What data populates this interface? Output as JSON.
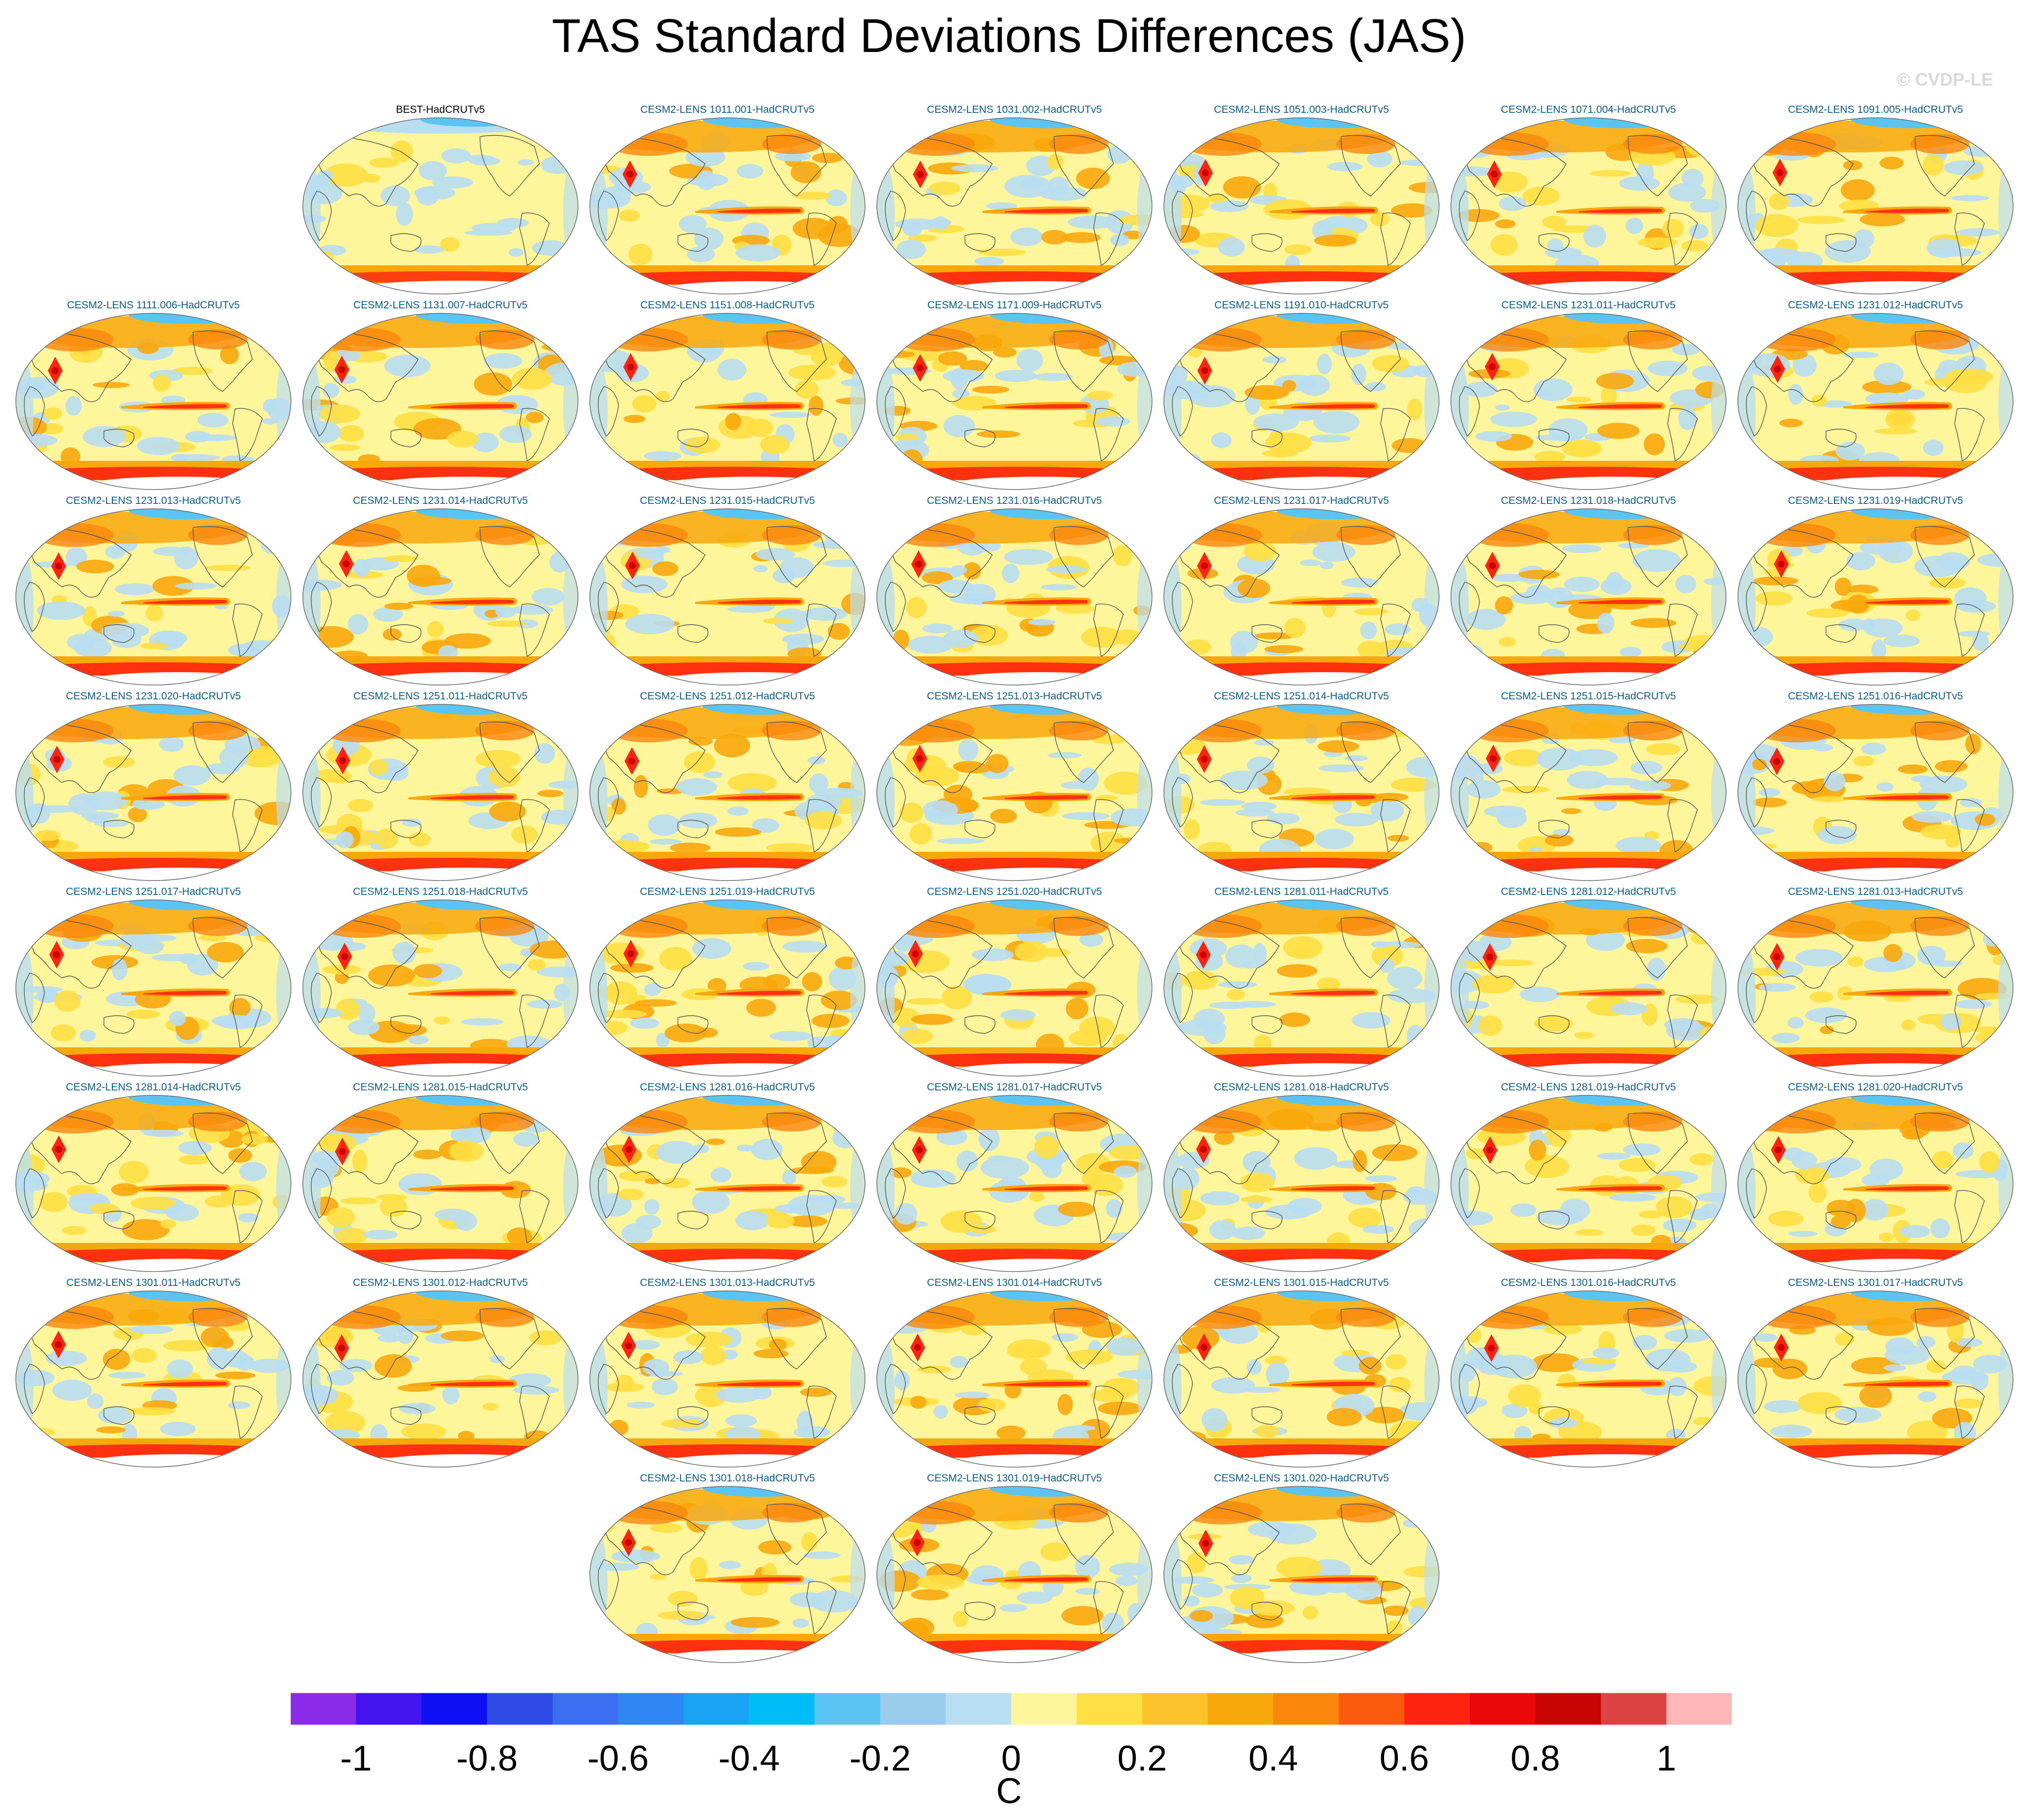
{
  "title": "TAS Standard Deviations Differences (JAS)",
  "watermark": "© CVDP-LE",
  "panels": [
    {
      "label": "BEST-HadCRUTv5",
      "type": "obs"
    },
    {
      "label": "CESM2-LENS 1011.001-HadCRUTv5",
      "type": "model"
    },
    {
      "label": "CESM2-LENS 1031.002-HadCRUTv5",
      "type": "model"
    },
    {
      "label": "CESM2-LENS 1051.003-HadCRUTv5",
      "type": "model"
    },
    {
      "label": "CESM2-LENS 1071.004-HadCRUTv5",
      "type": "model"
    },
    {
      "label": "CESM2-LENS 1091.005-HadCRUTv5",
      "type": "model"
    },
    {
      "label": "CESM2-LENS 1111.006-HadCRUTv5",
      "type": "model"
    },
    {
      "label": "CESM2-LENS 1131.007-HadCRUTv5",
      "type": "model"
    },
    {
      "label": "CESM2-LENS 1151.008-HadCRUTv5",
      "type": "model"
    },
    {
      "label": "CESM2-LENS 1171.009-HadCRUTv5",
      "type": "model"
    },
    {
      "label": "CESM2-LENS 1191.010-HadCRUTv5",
      "type": "model"
    },
    {
      "label": "CESM2-LENS 1231.011-HadCRUTv5",
      "type": "model"
    },
    {
      "label": "CESM2-LENS 1231.012-HadCRUTv5",
      "type": "model"
    },
    {
      "label": "CESM2-LENS 1231.013-HadCRUTv5",
      "type": "model"
    },
    {
      "label": "CESM2-LENS 1231.014-HadCRUTv5",
      "type": "model"
    },
    {
      "label": "CESM2-LENS 1231.015-HadCRUTv5",
      "type": "model"
    },
    {
      "label": "CESM2-LENS 1231.016-HadCRUTv5",
      "type": "model"
    },
    {
      "label": "CESM2-LENS 1231.017-HadCRUTv5",
      "type": "model"
    },
    {
      "label": "CESM2-LENS 1231.018-HadCRUTv5",
      "type": "model"
    },
    {
      "label": "CESM2-LENS 1231.019-HadCRUTv5",
      "type": "model"
    },
    {
      "label": "CESM2-LENS 1231.020-HadCRUTv5",
      "type": "model"
    },
    {
      "label": "CESM2-LENS 1251.011-HadCRUTv5",
      "type": "model"
    },
    {
      "label": "CESM2-LENS 1251.012-HadCRUTv5",
      "type": "model"
    },
    {
      "label": "CESM2-LENS 1251.013-HadCRUTv5",
      "type": "model"
    },
    {
      "label": "CESM2-LENS 1251.014-HadCRUTv5",
      "type": "model"
    },
    {
      "label": "CESM2-LENS 1251.015-HadCRUTv5",
      "type": "model"
    },
    {
      "label": "CESM2-LENS 1251.016-HadCRUTv5",
      "type": "model"
    },
    {
      "label": "CESM2-LENS 1251.017-HadCRUTv5",
      "type": "model"
    },
    {
      "label": "CESM2-LENS 1251.018-HadCRUTv5",
      "type": "model"
    },
    {
      "label": "CESM2-LENS 1251.019-HadCRUTv5",
      "type": "model"
    },
    {
      "label": "CESM2-LENS 1251.020-HadCRUTv5",
      "type": "model"
    },
    {
      "label": "CESM2-LENS 1281.011-HadCRUTv5",
      "type": "model"
    },
    {
      "label": "CESM2-LENS 1281.012-HadCRUTv5",
      "type": "model"
    },
    {
      "label": "CESM2-LENS 1281.013-HadCRUTv5",
      "type": "model"
    },
    {
      "label": "CESM2-LENS 1281.014-HadCRUTv5",
      "type": "model"
    },
    {
      "label": "CESM2-LENS 1281.015-HadCRUTv5",
      "type": "model"
    },
    {
      "label": "CESM2-LENS 1281.016-HadCRUTv5",
      "type": "model"
    },
    {
      "label": "CESM2-LENS 1281.017-HadCRUTv5",
      "type": "model"
    },
    {
      "label": "CESM2-LENS 1281.018-HadCRUTv5",
      "type": "model"
    },
    {
      "label": "CESM2-LENS 1281.019-HadCRUTv5",
      "type": "model"
    },
    {
      "label": "CESM2-LENS 1281.020-HadCRUTv5",
      "type": "model"
    },
    {
      "label": "CESM2-LENS 1301.011-HadCRUTv5",
      "type": "model"
    },
    {
      "label": "CESM2-LENS 1301.012-HadCRUTv5",
      "type": "model"
    },
    {
      "label": "CESM2-LENS 1301.013-HadCRUTv5",
      "type": "model"
    },
    {
      "label": "CESM2-LENS 1301.014-HadCRUTv5",
      "type": "model"
    },
    {
      "label": "CESM2-LENS 1301.015-HadCRUTv5",
      "type": "model"
    },
    {
      "label": "CESM2-LENS 1301.016-HadCRUTv5",
      "type": "model"
    },
    {
      "label": "CESM2-LENS 1301.017-HadCRUTv5",
      "type": "model"
    },
    {
      "label": "CESM2-LENS 1301.018-HadCRUTv5",
      "type": "model"
    },
    {
      "label": "CESM2-LENS 1301.019-HadCRUTv5",
      "type": "model"
    },
    {
      "label": "CESM2-LENS 1301.020-HadCRUTv5",
      "type": "model"
    }
  ],
  "colorbar": {
    "colors": [
      "#8b2bea",
      "#4314f0",
      "#0f0ff5",
      "#2f4de6",
      "#3b6ef0",
      "#2f86f5",
      "#1aa3f5",
      "#00bdf7",
      "#5bc4f2",
      "#99cbea",
      "#b9def2",
      "#fff59a",
      "#ffdf44",
      "#fbc22a",
      "#f9a80c",
      "#fb870c",
      "#fb5a0c",
      "#ff2410",
      "#ea0808",
      "#c80404",
      "#db4242",
      "#ffb6b6"
    ],
    "tick_labels": [
      "-1",
      "-0.8",
      "-0.6",
      "-0.4",
      "-0.2",
      "0",
      "0.2",
      "0.4",
      "0.6",
      "0.8",
      "1"
    ],
    "units": "C"
  },
  "map_colors": {
    "base": "#fff59a",
    "light_blue": "#b9def2",
    "mid_blue": "#5bc4f2",
    "yellow": "#ffdf44",
    "orange": "#f9a80c",
    "dark_orange": "#fb870c",
    "red": "#ff2410",
    "dark_red": "#c80404",
    "white": "#ffffff",
    "coast": "#555555"
  }
}
